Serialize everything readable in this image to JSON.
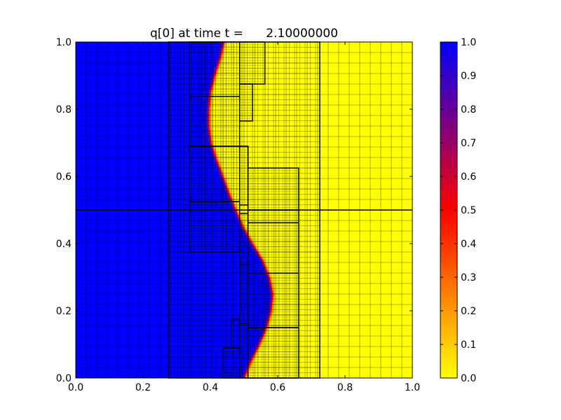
{
  "chart_data": {
    "type": "heatmap",
    "title": "q[0] at time t =      2.10000000",
    "xlabel": "",
    "ylabel": "",
    "xlim": [
      0.0,
      1.0
    ],
    "ylim": [
      0.0,
      1.0
    ],
    "xticks": [
      "0.0",
      "0.2",
      "0.4",
      "0.6",
      "0.8",
      "1.0"
    ],
    "yticks": [
      "0.0",
      "0.2",
      "0.4",
      "0.6",
      "0.8",
      "1.0"
    ],
    "colorbar": {
      "min": 0.0,
      "max": 1.0,
      "ticks": [
        "0.0",
        "0.1",
        "0.2",
        "0.3",
        "0.4",
        "0.5",
        "0.6",
        "0.7",
        "0.8",
        "0.9",
        "1.0"
      ],
      "colormap": [
        "#ffff00",
        "#ff0000",
        "#0000ff"
      ]
    },
    "field": {
      "value_left": 1.0,
      "value_right": 0.0,
      "front": [
        {
          "y": 0.0,
          "x": 0.5
        },
        {
          "y": 0.05,
          "x": 0.52
        },
        {
          "y": 0.1,
          "x": 0.545
        },
        {
          "y": 0.15,
          "x": 0.566
        },
        {
          "y": 0.2,
          "x": 0.58
        },
        {
          "y": 0.25,
          "x": 0.585
        },
        {
          "y": 0.3,
          "x": 0.575
        },
        {
          "y": 0.35,
          "x": 0.555
        },
        {
          "y": 0.4,
          "x": 0.525
        },
        {
          "y": 0.45,
          "x": 0.497
        },
        {
          "y": 0.5,
          "x": 0.475
        },
        {
          "y": 0.55,
          "x": 0.455
        },
        {
          "y": 0.6,
          "x": 0.437
        },
        {
          "y": 0.65,
          "x": 0.418
        },
        {
          "y": 0.7,
          "x": 0.402
        },
        {
          "y": 0.75,
          "x": 0.395
        },
        {
          "y": 0.8,
          "x": 0.395
        },
        {
          "y": 0.85,
          "x": 0.4
        },
        {
          "y": 0.9,
          "x": 0.412
        },
        {
          "y": 0.95,
          "x": 0.428
        },
        {
          "y": 1.0,
          "x": 0.44
        }
      ]
    },
    "patches": [
      {
        "level": 1,
        "x0": 0.0,
        "x1": 1.0,
        "y0": 0.0,
        "y1": 1.0,
        "dx": 0.03125
      },
      {
        "level": 2,
        "x0": 0.275,
        "x1": 0.725,
        "y0": 0.0,
        "y1": 1.0,
        "dx": 0.015625
      },
      {
        "level": 3,
        "x0": 0.337,
        "x1": 0.487,
        "y0": 0.375,
        "y1": 0.525,
        "dx": 0.0078125
      },
      {
        "level": 3,
        "x0": 0.337,
        "x1": 0.487,
        "y0": 0.525,
        "y1": 0.69,
        "dx": 0.0078125
      },
      {
        "level": 3,
        "x0": 0.337,
        "x1": 0.487,
        "y0": 0.69,
        "y1": 0.838,
        "dx": 0.0078125
      },
      {
        "level": 3,
        "x0": 0.337,
        "x1": 0.487,
        "y0": 0.838,
        "y1": 1.0,
        "dx": 0.0078125
      },
      {
        "level": 3,
        "x0": 0.487,
        "x1": 0.562,
        "y0": 0.875,
        "y1": 1.0,
        "dx": 0.0078125
      },
      {
        "level": 3,
        "x0": 0.487,
        "x1": 0.525,
        "y0": 0.765,
        "y1": 0.875,
        "dx": 0.0078125
      },
      {
        "level": 3,
        "x0": 0.487,
        "x1": 0.512,
        "y0": 0.515,
        "y1": 0.69,
        "dx": 0.0078125
      },
      {
        "level": 3,
        "x0": 0.512,
        "x1": 0.662,
        "y0": 0.5,
        "y1": 0.625,
        "dx": 0.0078125
      },
      {
        "level": 3,
        "x0": 0.512,
        "x1": 0.662,
        "y0": 0.462,
        "y1": 0.5,
        "dx": 0.0078125
      },
      {
        "level": 3,
        "x0": 0.512,
        "x1": 0.662,
        "y0": 0.312,
        "y1": 0.462,
        "dx": 0.0078125
      },
      {
        "level": 3,
        "x0": 0.512,
        "x1": 0.662,
        "y0": 0.15,
        "y1": 0.312,
        "dx": 0.0078125
      },
      {
        "level": 3,
        "x0": 0.512,
        "x1": 0.662,
        "y0": 0.0,
        "y1": 0.15,
        "dx": 0.0078125
      },
      {
        "level": 3,
        "x0": 0.487,
        "x1": 0.512,
        "y0": 0.338,
        "y1": 0.49,
        "dx": 0.0078125
      },
      {
        "level": 3,
        "x0": 0.487,
        "x1": 0.512,
        "y0": 0.162,
        "y1": 0.338,
        "dx": 0.0078125
      },
      {
        "level": 3,
        "x0": 0.487,
        "x1": 0.512,
        "y0": 0.0,
        "y1": 0.162,
        "dx": 0.0078125
      },
      {
        "level": 3,
        "x0": 0.462,
        "x1": 0.487,
        "y0": 0.09,
        "y1": 0.175,
        "dx": 0.0078125
      },
      {
        "level": 3,
        "x0": 0.437,
        "x1": 0.487,
        "y0": 0.0,
        "y1": 0.09,
        "dx": 0.0078125
      }
    ],
    "mesh_lines": [
      {
        "x0": 0.0,
        "x1": 1.0,
        "y0": 0.5,
        "y1": 0.5
      }
    ]
  }
}
